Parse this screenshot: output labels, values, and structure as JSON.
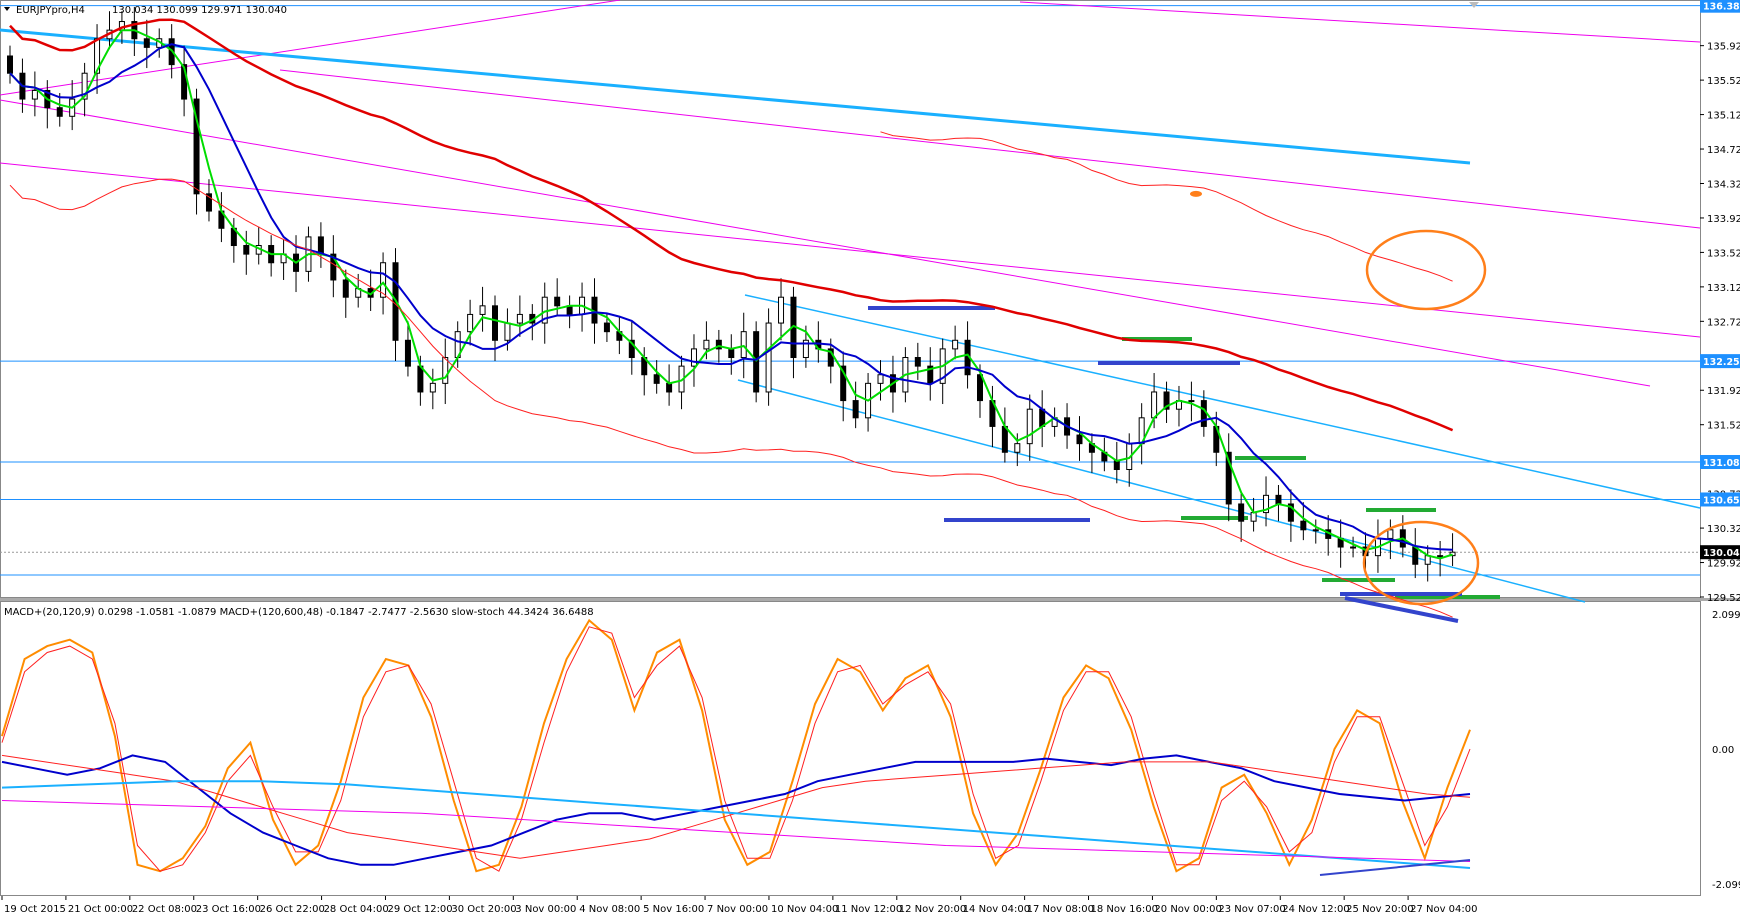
{
  "header": {
    "symbol": "EURJPYpro,H4",
    "ohlc": "130.034 130.099 129.971 130.040"
  },
  "indicator_header": "MACD+(20,120,9) 0.0298 -1.0581 -1.0879  MACD+(120,600,48) -0.1847 -2.7477 -2.5630  slow-stoch 44.3424 36.6488",
  "colors": {
    "candle": "#000000",
    "fast_ma": "#00dd00",
    "mid_ma": "#0000cc",
    "slow_ma": "#e00000",
    "envelope": "#ff2020",
    "trend_pink": "#ee00ee",
    "trend_cyan": "#1ab0ff",
    "hline": "#1e90ff",
    "support_green": "#22aa33",
    "support_blue": "#3344cc",
    "marker": "#ff7f1a",
    "stoch_orange": "#ff8c00",
    "price_tag_bg": "#1e90ff",
    "current_tag_bg": "#000000"
  },
  "chart_data": [
    {
      "type": "candlestick",
      "title": "EURJPYpro,H4",
      "y_range": [
        129.52,
        136.45
      ],
      "price_axis_ticks": [
        "135.920",
        "135.520",
        "135.120",
        "134.720",
        "134.320",
        "133.920",
        "133.520",
        "133.120",
        "132.720",
        "131.920",
        "131.520",
        "130.720",
        "130.320",
        "129.920",
        "129.520"
      ],
      "hlines": [
        {
          "price": 136.384,
          "label": "136.384"
        },
        {
          "price": 132.258,
          "label": "132.258"
        },
        {
          "price": 131.087,
          "label": "131.087"
        },
        {
          "price": 130.652,
          "label": "130.652"
        },
        {
          "price": 130.04,
          "label": "130.040",
          "current": true
        }
      ],
      "time_labels": [
        "19 Oct 2015",
        "21 Oct 00:00",
        "22 Oct 08:00",
        "23 Oct 16:00",
        "26 Oct 22:00",
        "28 Oct 04:00",
        "29 Oct 12:00",
        "30 Oct 20:00",
        "3 Nov 00:00",
        "4 Nov 08:00",
        "5 Nov 16:00",
        "7 Nov 00:00",
        "10 Nov 04:00",
        "11 Nov 12:00",
        "12 Nov 20:00",
        "14 Nov 04:00",
        "17 Nov 08:00",
        "18 Nov 16:00",
        "20 Nov 00:00",
        "23 Nov 07:00",
        "24 Nov 12:00",
        "25 Nov 20:00",
        "27 Nov 04:00"
      ],
      "closes": [
        135.6,
        135.3,
        135.4,
        135.2,
        135.1,
        135.3,
        135.6,
        136.0,
        136.1,
        136.2,
        136.0,
        135.9,
        136.0,
        135.7,
        135.3,
        134.2,
        134.0,
        133.8,
        133.6,
        133.5,
        133.6,
        133.4,
        133.5,
        133.3,
        133.7,
        133.5,
        133.2,
        133.0,
        133.1,
        133.0,
        133.4,
        132.5,
        132.2,
        131.9,
        132.0,
        132.3,
        132.6,
        132.8,
        132.9,
        132.5,
        132.7,
        132.8,
        132.7,
        133.0,
        132.9,
        132.8,
        133.0,
        132.7,
        132.6,
        132.5,
        132.3,
        132.1,
        132.0,
        131.9,
        132.2,
        132.4,
        132.5,
        132.4,
        132.3,
        132.6,
        131.9,
        132.7,
        133.0,
        132.3,
        132.5,
        132.4,
        132.2,
        131.8,
        131.6,
        132.0,
        132.1,
        131.9,
        132.3,
        132.2,
        132.0,
        132.4,
        132.5,
        132.1,
        131.8,
        131.5,
        131.2,
        131.3,
        131.7,
        131.5,
        131.6,
        131.4,
        131.3,
        131.2,
        131.1,
        131.0,
        131.3,
        131.6,
        131.9,
        131.7,
        131.8,
        131.8,
        131.5,
        131.2,
        130.6,
        130.4,
        130.5,
        130.7,
        130.6,
        130.4,
        130.3,
        130.3,
        130.2,
        130.1,
        130.1,
        130.0,
        130.2,
        130.3,
        130.1,
        129.9,
        130.0,
        130.0,
        130.04
      ],
      "markers": [
        {
          "price": 134.2,
          "label": "",
          "style": "orange-dot"
        }
      ]
    },
    {
      "type": "line",
      "title": "MACD+ / slow-stoch",
      "y_range": [
        -2.0991,
        2.0991
      ],
      "axis_ticks": [
        "2.0991",
        "0.00",
        "-2.0991"
      ],
      "series": [
        {
          "name": "slow-stoch %K",
          "color": "#ff8c00",
          "values": [
            0.2,
            1.4,
            1.6,
            1.7,
            1.5,
            0.2,
            -1.8,
            -1.9,
            -1.7,
            -1.2,
            -0.3,
            0.1,
            -1.1,
            -1.8,
            -1.5,
            -0.5,
            0.8,
            1.4,
            1.3,
            0.5,
            -0.8,
            -1.9,
            -1.8,
            -0.9,
            0.4,
            1.4,
            2.0,
            1.7,
            0.6,
            1.5,
            1.7,
            0.6,
            -1.1,
            -1.8,
            -1.6,
            -0.5,
            0.7,
            1.4,
            1.2,
            0.6,
            1.1,
            1.3,
            0.5,
            -1.0,
            -1.8,
            -1.3,
            -0.3,
            0.8,
            1.3,
            1.1,
            0.3,
            -0.9,
            -1.9,
            -1.7,
            -0.6,
            -0.4,
            -1.0,
            -1.8,
            -1.1,
            0.0,
            0.6,
            0.4,
            -0.8,
            -1.7,
            -0.6,
            0.3
          ]
        },
        {
          "name": "slow-stoch %D",
          "color": "#ff2020",
          "values": [
            0.1,
            1.2,
            1.5,
            1.6,
            1.4,
            0.4,
            -1.5,
            -1.9,
            -1.8,
            -1.3,
            -0.5,
            -0.1,
            -0.9,
            -1.6,
            -1.6,
            -0.8,
            0.5,
            1.2,
            1.3,
            0.7,
            -0.5,
            -1.7,
            -1.9,
            -1.1,
            0.1,
            1.2,
            1.9,
            1.8,
            0.8,
            1.3,
            1.6,
            0.8,
            -0.8,
            -1.7,
            -1.7,
            -0.8,
            0.4,
            1.2,
            1.3,
            0.7,
            1.0,
            1.2,
            0.7,
            -0.7,
            -1.7,
            -1.5,
            -0.5,
            0.6,
            1.2,
            1.2,
            0.5,
            -0.7,
            -1.8,
            -1.8,
            -0.8,
            -0.5,
            -0.9,
            -1.6,
            -1.3,
            -0.2,
            0.5,
            0.5,
            -0.5,
            -1.5,
            -0.9,
            0.0
          ]
        },
        {
          "name": "MACD+(20,120,9)",
          "color": "#0000cc",
          "values": [
            -0.2,
            -0.3,
            -0.4,
            -0.3,
            -0.1,
            -0.2,
            -0.6,
            -1.0,
            -1.3,
            -1.5,
            -1.7,
            -1.8,
            -1.8,
            -1.7,
            -1.6,
            -1.5,
            -1.3,
            -1.1,
            -1.0,
            -1.0,
            -1.1,
            -1.0,
            -0.9,
            -0.8,
            -0.7,
            -0.5,
            -0.4,
            -0.3,
            -0.2,
            -0.2,
            -0.2,
            -0.2,
            -0.15,
            -0.2,
            -0.25,
            -0.15,
            -0.1,
            -0.2,
            -0.3,
            -0.5,
            -0.6,
            -0.7,
            -0.75,
            -0.8,
            -0.75,
            -0.7
          ]
        },
        {
          "name": "MACD+ signal",
          "color": "#ff2020",
          "values": [
            -0.1,
            -0.2,
            -0.3,
            -0.4,
            -0.5,
            -0.7,
            -0.9,
            -1.1,
            -1.3,
            -1.4,
            -1.5,
            -1.6,
            -1.7,
            -1.6,
            -1.5,
            -1.4,
            -1.2,
            -1.0,
            -0.8,
            -0.6,
            -0.5,
            -0.45,
            -0.4,
            -0.35,
            -0.3,
            -0.25,
            -0.2,
            -0.2,
            -0.2,
            -0.3,
            -0.4,
            -0.5,
            -0.6,
            -0.7,
            -0.75
          ]
        },
        {
          "name": "MACD+(120,600,48)",
          "color": "#1ab0ff",
          "values": [
            -0.6,
            -0.55,
            -0.5,
            -0.5,
            -0.55,
            -0.65,
            -0.75,
            -0.85,
            -0.95,
            -1.05,
            -1.15,
            -1.25,
            -1.35,
            -1.45,
            -1.55,
            -1.65,
            -1.75,
            -1.85
          ]
        },
        {
          "name": "MACD+(120,600,48) signal",
          "color": "#ee00ee",
          "values": [
            -0.8,
            -0.85,
            -0.9,
            -0.95,
            -1.0,
            -1.1,
            -1.2,
            -1.3,
            -1.4,
            -1.5,
            -1.55,
            -1.6,
            -1.65,
            -1.7,
            -1.75
          ]
        }
      ]
    }
  ]
}
